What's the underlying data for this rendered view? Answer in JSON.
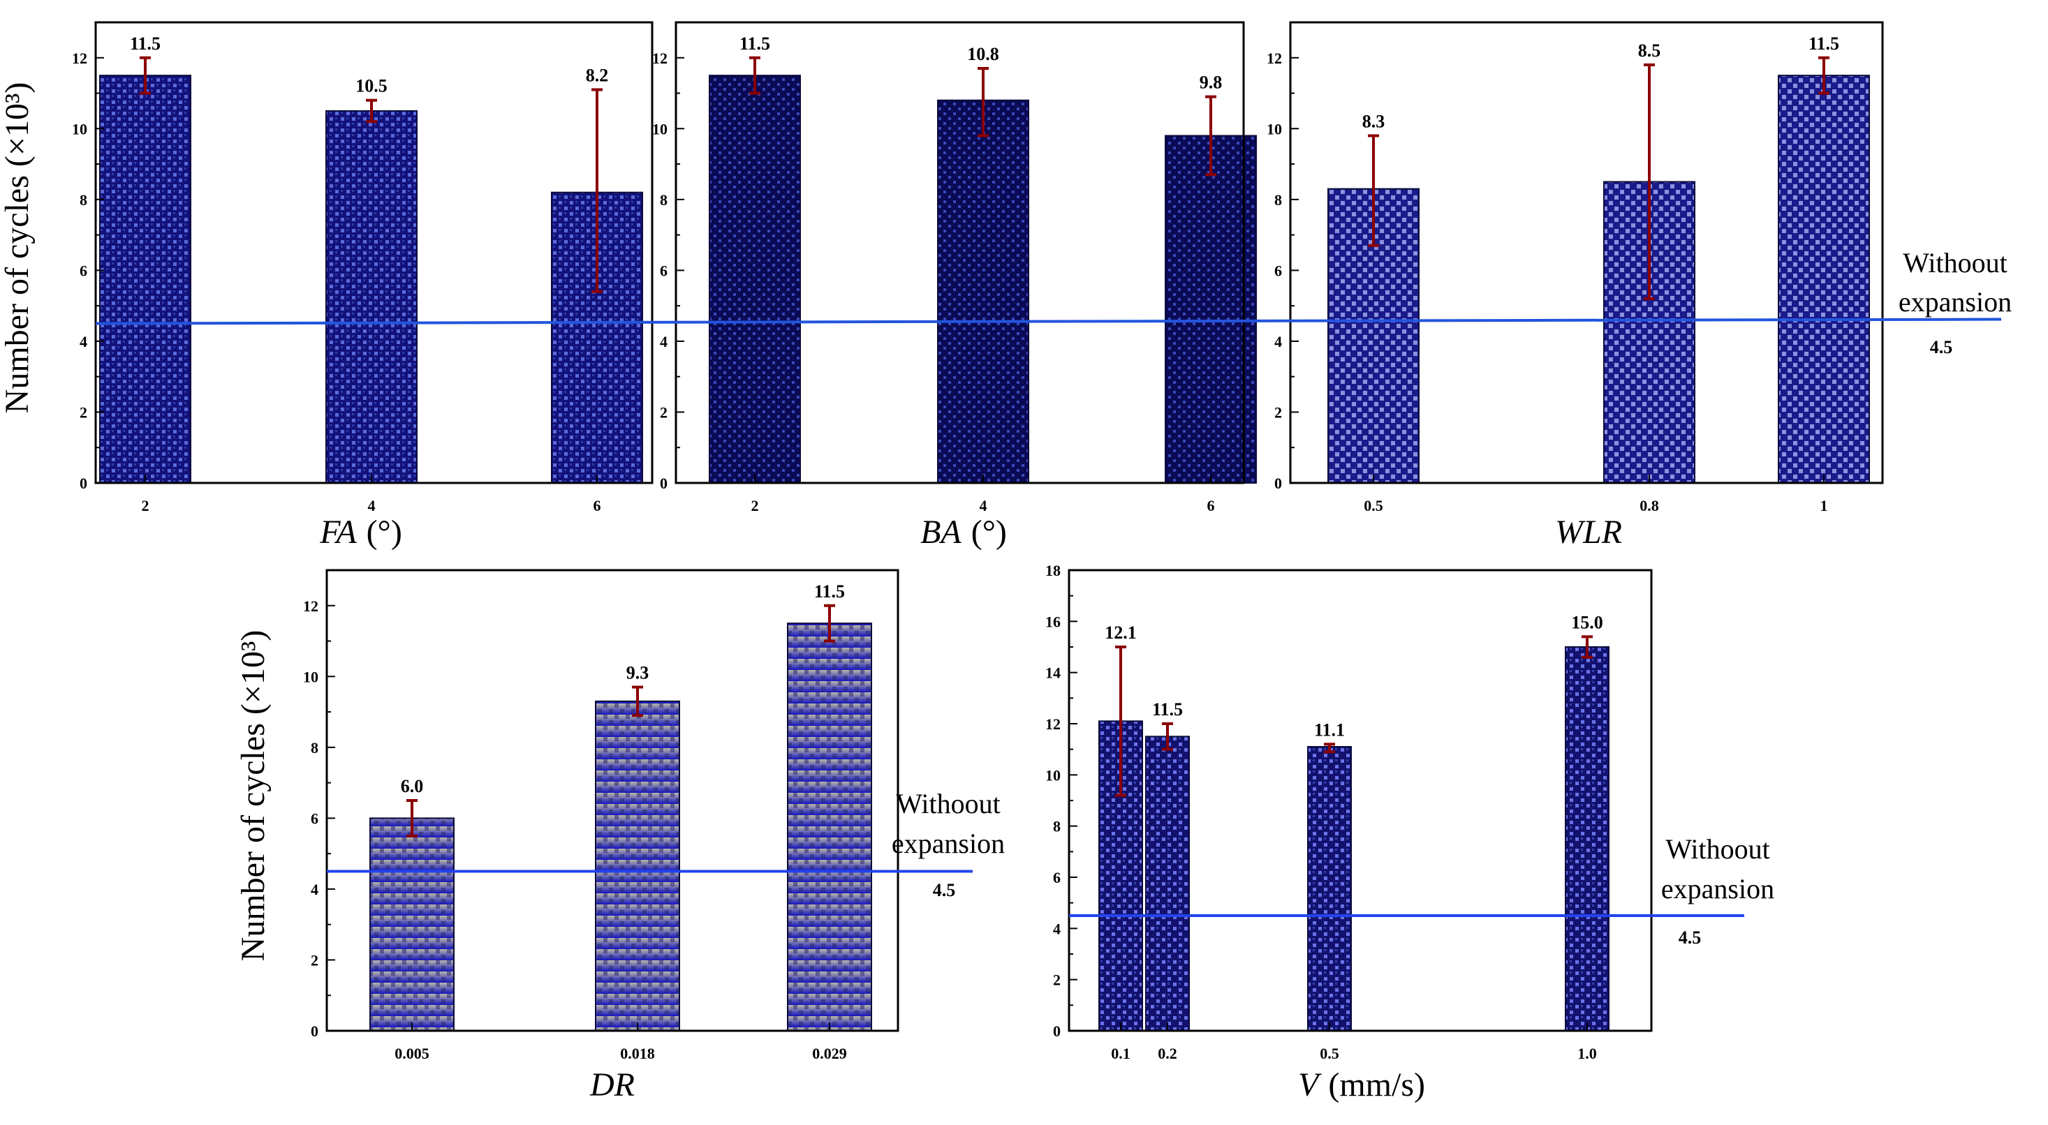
{
  "chart_data": [
    {
      "type": "bar",
      "id": "fa",
      "xlabel": "FA",
      "xunit": "(°)",
      "ylabel": "Number of cycles (×10³)",
      "categories": [
        "2",
        "4",
        "6"
      ],
      "values": [
        11.5,
        10.5,
        8.2
      ],
      "value_labels": [
        "11.5",
        "10.5",
        "8.2"
      ],
      "error_low": [
        11.0,
        10.2,
        5.4
      ],
      "error_high": [
        12.0,
        10.8,
        11.1
      ],
      "ylim": [
        0,
        13
      ],
      "yticks": [
        0,
        2,
        4,
        6,
        8,
        10,
        12
      ],
      "baseline": {
        "value": 4.5,
        "label": "Withoout expansion",
        "value_label": "4.5"
      }
    },
    {
      "type": "bar",
      "id": "ba",
      "xlabel": "BA",
      "xunit": "(°)",
      "ylabel": "",
      "categories": [
        "2",
        "4",
        "6"
      ],
      "values": [
        11.5,
        10.8,
        9.8
      ],
      "value_labels": [
        "11.5",
        "10.8",
        "9.8"
      ],
      "error_low": [
        11.0,
        9.8,
        8.7
      ],
      "error_high": [
        12.0,
        11.7,
        10.9
      ],
      "ylim": [
        0,
        13
      ],
      "yticks": [
        0,
        2,
        4,
        6,
        8,
        10,
        12
      ],
      "baseline": {
        "value": 4.5
      }
    },
    {
      "type": "bar",
      "id": "wlr",
      "xlabel": "WLR",
      "xunit": "",
      "ylabel": "",
      "categories": [
        "0.5",
        "0.8",
        "1"
      ],
      "values": [
        8.3,
        8.5,
        11.5
      ],
      "value_labels": [
        "8.3",
        "8.5",
        "11.5"
      ],
      "error_low": [
        6.7,
        5.2,
        11.0
      ],
      "error_high": [
        9.8,
        11.8,
        12.0
      ],
      "ylim": [
        0,
        13
      ],
      "yticks": [
        0,
        2,
        4,
        6,
        8,
        10,
        12
      ],
      "baseline": {
        "value": 4.5,
        "label": "Withoout expansion",
        "value_label": "4.5"
      }
    },
    {
      "type": "bar",
      "id": "dr",
      "xlabel": "DR",
      "xunit": "",
      "ylabel": "Number of cycles (×10³)",
      "categories": [
        "0.005",
        "0.018",
        "0.029"
      ],
      "values": [
        6.0,
        9.3,
        11.5
      ],
      "value_labels": [
        "6.0",
        "9.3",
        "11.5"
      ],
      "error_low": [
        5.5,
        8.9,
        11.0
      ],
      "error_high": [
        6.5,
        9.7,
        12.0
      ],
      "ylim": [
        0,
        13
      ],
      "yticks": [
        0,
        2,
        4,
        6,
        8,
        10,
        12
      ],
      "baseline": {
        "value": 4.5,
        "label": "Withoout expansion",
        "value_label": "4.5"
      }
    },
    {
      "type": "bar",
      "id": "v",
      "xlabel": "V",
      "xunit": "(mm/s)",
      "ylabel": "",
      "categories": [
        "0.1",
        "0.2",
        "0.5",
        "1.0"
      ],
      "values": [
        12.1,
        11.5,
        11.1,
        15.0
      ],
      "value_labels": [
        "12.1",
        "11.5",
        "11.1",
        "15.0"
      ],
      "error_low": [
        9.2,
        11.0,
        10.9,
        14.6
      ],
      "error_high": [
        15.0,
        12.0,
        11.2,
        15.4
      ],
      "ylim": [
        0,
        18
      ],
      "yticks": [
        0,
        2,
        4,
        6,
        8,
        10,
        12,
        14,
        16,
        18
      ],
      "baseline": {
        "value": 4.5,
        "label": "Withoout expansion",
        "value_label": "4.5"
      }
    }
  ]
}
